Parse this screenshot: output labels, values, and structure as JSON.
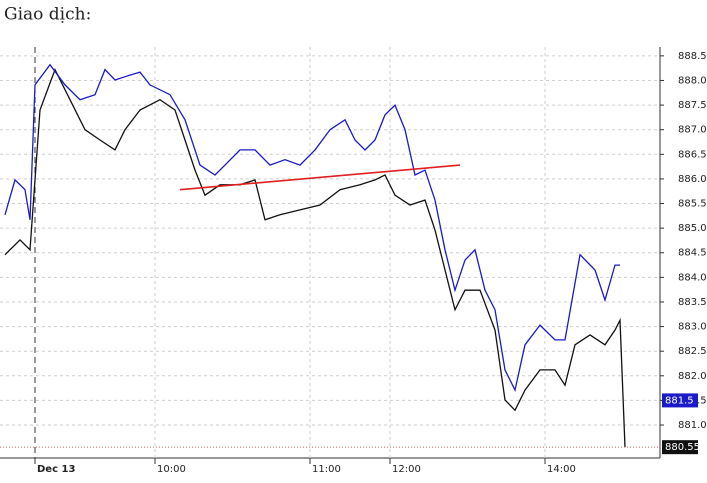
{
  "chart_data": {
    "type": "line",
    "title": "Giao dịch:",
    "xlim": [
      0,
      165
    ],
    "xticks": [
      {
        "value": 8.75,
        "label": "Dec 13"
      },
      {
        "value": 38.75,
        "label": "10:00"
      },
      {
        "value": 77.5,
        "label": "11:00"
      },
      {
        "value": 97.5,
        "label": "12:00"
      },
      {
        "value": 136.25,
        "label": "14:00"
      }
    ],
    "ylim": [
      880.33,
      888.68
    ],
    "yticks": [
      {
        "value": 881.0,
        "label": "881.0"
      },
      {
        "value": 881.5,
        "label": "881.5"
      },
      {
        "value": 882.0,
        "label": "882.0"
      },
      {
        "value": 882.5,
        "label": "882.5"
      },
      {
        "value": 883.0,
        "label": "883.0"
      },
      {
        "value": 883.5,
        "label": "883.5"
      },
      {
        "value": 884.0,
        "label": "884.0"
      },
      {
        "value": 884.5,
        "label": "884.5"
      },
      {
        "value": 885.0,
        "label": "885.0"
      },
      {
        "value": 885.5,
        "label": "885.5"
      },
      {
        "value": 886.0,
        "label": "886.0"
      },
      {
        "value": 886.5,
        "label": "886.5"
      },
      {
        "value": 887.0,
        "label": "887.0"
      },
      {
        "value": 887.5,
        "label": "887.5"
      },
      {
        "value": 888.0,
        "label": "888.0"
      },
      {
        "value": 888.5,
        "label": "888.5"
      }
    ],
    "grid": true,
    "series": [
      {
        "color": "#111111",
        "x": [
          1.25,
          5,
          7.5,
          10,
          13.75,
          17.5,
          21.25,
          25,
          28.75,
          31.25,
          35,
          40,
          43.75,
          46.25,
          48.75,
          51.25,
          55,
          60,
          63.75,
          66.25,
          70,
          75,
          80,
          85,
          90,
          93.75,
          96.25,
          98.75,
          102.5,
          106.25,
          108.75,
          111.25,
          113.75,
          116.25,
          120,
          123.75,
          126.25,
          128.75,
          131.25,
          135,
          138.75,
          141.25,
          143.75,
          147.5,
          151.25,
          153.75,
          155,
          156.25
        ],
        "values": [
          884.46,
          884.76,
          884.56,
          887.4,
          888.22,
          887.61,
          887.0,
          886.79,
          886.59,
          887.0,
          887.4,
          887.61,
          887.4,
          886.79,
          886.18,
          885.67,
          885.88,
          885.88,
          885.98,
          885.17,
          885.27,
          885.37,
          885.47,
          885.78,
          885.88,
          885.98,
          886.08,
          885.67,
          885.47,
          885.57,
          884.96,
          884.15,
          883.34,
          883.74,
          883.74,
          882.93,
          881.51,
          881.3,
          881.71,
          882.12,
          882.12,
          881.81,
          882.63,
          882.83,
          882.63,
          882.93,
          883.13,
          880.55
        ]
      },
      {
        "color": "#1a1ac8",
        "x": [
          1.25,
          3.75,
          6.25,
          7.5,
          8.75,
          12.5,
          16.25,
          20,
          23.75,
          26.25,
          28.75,
          32.5,
          35,
          37.5,
          42.5,
          46.25,
          50,
          53.75,
          56.25,
          60,
          63.75,
          67.5,
          71.25,
          75,
          78.75,
          82.5,
          86.25,
          88.75,
          91.25,
          93.75,
          96.25,
          98.75,
          101.25,
          103.75,
          106.25,
          108.75,
          111.25,
          113.75,
          116.25,
          118.75,
          121.25,
          123.75,
          126.25,
          128.75,
          131.25,
          135,
          138.75,
          141.25,
          145,
          148.75,
          151.25,
          153.75,
          155
        ],
        "values": [
          885.27,
          885.98,
          885.78,
          885.17,
          887.91,
          888.32,
          887.91,
          887.61,
          887.71,
          888.22,
          888.01,
          888.11,
          888.17,
          887.91,
          887.71,
          887.2,
          886.28,
          886.08,
          886.28,
          886.59,
          886.59,
          886.28,
          886.39,
          886.28,
          886.59,
          887.0,
          887.2,
          886.79,
          886.59,
          886.79,
          887.3,
          887.5,
          887.0,
          886.08,
          886.18,
          885.57,
          884.56,
          883.74,
          884.35,
          884.56,
          883.74,
          883.34,
          882.12,
          881.71,
          882.63,
          883.03,
          882.73,
          882.73,
          884.46,
          884.15,
          883.54,
          884.25,
          884.25
        ]
      }
    ],
    "trendline": {
      "x": [
        45,
        115
      ],
      "values": [
        885.78,
        886.28
      ],
      "color": "#e02020"
    },
    "price_labels": [
      {
        "value": 881.5,
        "color": "#1a1ac8"
      },
      {
        "value": 880.55,
        "color": "#111111"
      }
    ]
  }
}
